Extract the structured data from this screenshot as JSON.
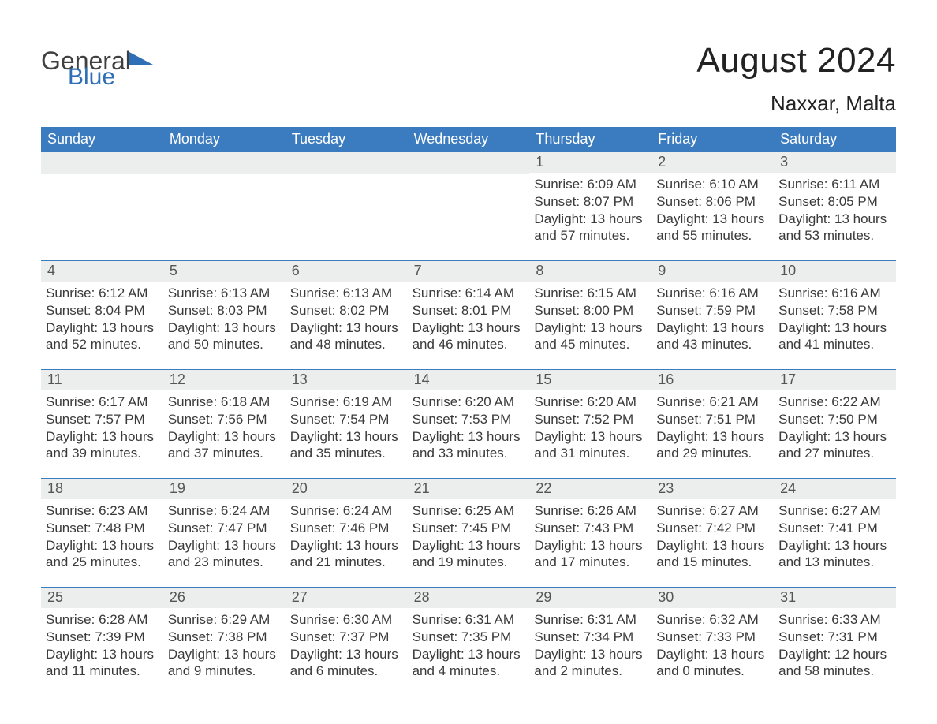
{
  "logo": {
    "text1": "General",
    "text2": "Blue"
  },
  "title": "August 2024",
  "location": "Naxxar, Malta",
  "colors": {
    "header_bg": "#3b7bbf",
    "header_text": "#ffffff",
    "daynum_bg": "#eceded",
    "daynum_text": "#555555",
    "body_text": "#3a3a3a",
    "rule": "#3b7bbf",
    "logo_blue": "#2e6fb5",
    "page_bg": "#ffffff"
  },
  "day_labels": [
    "Sunday",
    "Monday",
    "Tuesday",
    "Wednesday",
    "Thursday",
    "Friday",
    "Saturday"
  ],
  "weeks": [
    [
      null,
      null,
      null,
      null,
      {
        "n": "1",
        "sr": "Sunrise: 6:09 AM",
        "ss": "Sunset: 8:07 PM",
        "d1": "Daylight: 13 hours",
        "d2": "and 57 minutes."
      },
      {
        "n": "2",
        "sr": "Sunrise: 6:10 AM",
        "ss": "Sunset: 8:06 PM",
        "d1": "Daylight: 13 hours",
        "d2": "and 55 minutes."
      },
      {
        "n": "3",
        "sr": "Sunrise: 6:11 AM",
        "ss": "Sunset: 8:05 PM",
        "d1": "Daylight: 13 hours",
        "d2": "and 53 minutes."
      }
    ],
    [
      {
        "n": "4",
        "sr": "Sunrise: 6:12 AM",
        "ss": "Sunset: 8:04 PM",
        "d1": "Daylight: 13 hours",
        "d2": "and 52 minutes."
      },
      {
        "n": "5",
        "sr": "Sunrise: 6:13 AM",
        "ss": "Sunset: 8:03 PM",
        "d1": "Daylight: 13 hours",
        "d2": "and 50 minutes."
      },
      {
        "n": "6",
        "sr": "Sunrise: 6:13 AM",
        "ss": "Sunset: 8:02 PM",
        "d1": "Daylight: 13 hours",
        "d2": "and 48 minutes."
      },
      {
        "n": "7",
        "sr": "Sunrise: 6:14 AM",
        "ss": "Sunset: 8:01 PM",
        "d1": "Daylight: 13 hours",
        "d2": "and 46 minutes."
      },
      {
        "n": "8",
        "sr": "Sunrise: 6:15 AM",
        "ss": "Sunset: 8:00 PM",
        "d1": "Daylight: 13 hours",
        "d2": "and 45 minutes."
      },
      {
        "n": "9",
        "sr": "Sunrise: 6:16 AM",
        "ss": "Sunset: 7:59 PM",
        "d1": "Daylight: 13 hours",
        "d2": "and 43 minutes."
      },
      {
        "n": "10",
        "sr": "Sunrise: 6:16 AM",
        "ss": "Sunset: 7:58 PM",
        "d1": "Daylight: 13 hours",
        "d2": "and 41 minutes."
      }
    ],
    [
      {
        "n": "11",
        "sr": "Sunrise: 6:17 AM",
        "ss": "Sunset: 7:57 PM",
        "d1": "Daylight: 13 hours",
        "d2": "and 39 minutes."
      },
      {
        "n": "12",
        "sr": "Sunrise: 6:18 AM",
        "ss": "Sunset: 7:56 PM",
        "d1": "Daylight: 13 hours",
        "d2": "and 37 minutes."
      },
      {
        "n": "13",
        "sr": "Sunrise: 6:19 AM",
        "ss": "Sunset: 7:54 PM",
        "d1": "Daylight: 13 hours",
        "d2": "and 35 minutes."
      },
      {
        "n": "14",
        "sr": "Sunrise: 6:20 AM",
        "ss": "Sunset: 7:53 PM",
        "d1": "Daylight: 13 hours",
        "d2": "and 33 minutes."
      },
      {
        "n": "15",
        "sr": "Sunrise: 6:20 AM",
        "ss": "Sunset: 7:52 PM",
        "d1": "Daylight: 13 hours",
        "d2": "and 31 minutes."
      },
      {
        "n": "16",
        "sr": "Sunrise: 6:21 AM",
        "ss": "Sunset: 7:51 PM",
        "d1": "Daylight: 13 hours",
        "d2": "and 29 minutes."
      },
      {
        "n": "17",
        "sr": "Sunrise: 6:22 AM",
        "ss": "Sunset: 7:50 PM",
        "d1": "Daylight: 13 hours",
        "d2": "and 27 minutes."
      }
    ],
    [
      {
        "n": "18",
        "sr": "Sunrise: 6:23 AM",
        "ss": "Sunset: 7:48 PM",
        "d1": "Daylight: 13 hours",
        "d2": "and 25 minutes."
      },
      {
        "n": "19",
        "sr": "Sunrise: 6:24 AM",
        "ss": "Sunset: 7:47 PM",
        "d1": "Daylight: 13 hours",
        "d2": "and 23 minutes."
      },
      {
        "n": "20",
        "sr": "Sunrise: 6:24 AM",
        "ss": "Sunset: 7:46 PM",
        "d1": "Daylight: 13 hours",
        "d2": "and 21 minutes."
      },
      {
        "n": "21",
        "sr": "Sunrise: 6:25 AM",
        "ss": "Sunset: 7:45 PM",
        "d1": "Daylight: 13 hours",
        "d2": "and 19 minutes."
      },
      {
        "n": "22",
        "sr": "Sunrise: 6:26 AM",
        "ss": "Sunset: 7:43 PM",
        "d1": "Daylight: 13 hours",
        "d2": "and 17 minutes."
      },
      {
        "n": "23",
        "sr": "Sunrise: 6:27 AM",
        "ss": "Sunset: 7:42 PM",
        "d1": "Daylight: 13 hours",
        "d2": "and 15 minutes."
      },
      {
        "n": "24",
        "sr": "Sunrise: 6:27 AM",
        "ss": "Sunset: 7:41 PM",
        "d1": "Daylight: 13 hours",
        "d2": "and 13 minutes."
      }
    ],
    [
      {
        "n": "25",
        "sr": "Sunrise: 6:28 AM",
        "ss": "Sunset: 7:39 PM",
        "d1": "Daylight: 13 hours",
        "d2": "and 11 minutes."
      },
      {
        "n": "26",
        "sr": "Sunrise: 6:29 AM",
        "ss": "Sunset: 7:38 PM",
        "d1": "Daylight: 13 hours",
        "d2": "and 9 minutes."
      },
      {
        "n": "27",
        "sr": "Sunrise: 6:30 AM",
        "ss": "Sunset: 7:37 PM",
        "d1": "Daylight: 13 hours",
        "d2": "and 6 minutes."
      },
      {
        "n": "28",
        "sr": "Sunrise: 6:31 AM",
        "ss": "Sunset: 7:35 PM",
        "d1": "Daylight: 13 hours",
        "d2": "and 4 minutes."
      },
      {
        "n": "29",
        "sr": "Sunrise: 6:31 AM",
        "ss": "Sunset: 7:34 PM",
        "d1": "Daylight: 13 hours",
        "d2": "and 2 minutes."
      },
      {
        "n": "30",
        "sr": "Sunrise: 6:32 AM",
        "ss": "Sunset: 7:33 PM",
        "d1": "Daylight: 13 hours",
        "d2": "and 0 minutes."
      },
      {
        "n": "31",
        "sr": "Sunrise: 6:33 AM",
        "ss": "Sunset: 7:31 PM",
        "d1": "Daylight: 12 hours",
        "d2": "and 58 minutes."
      }
    ]
  ]
}
